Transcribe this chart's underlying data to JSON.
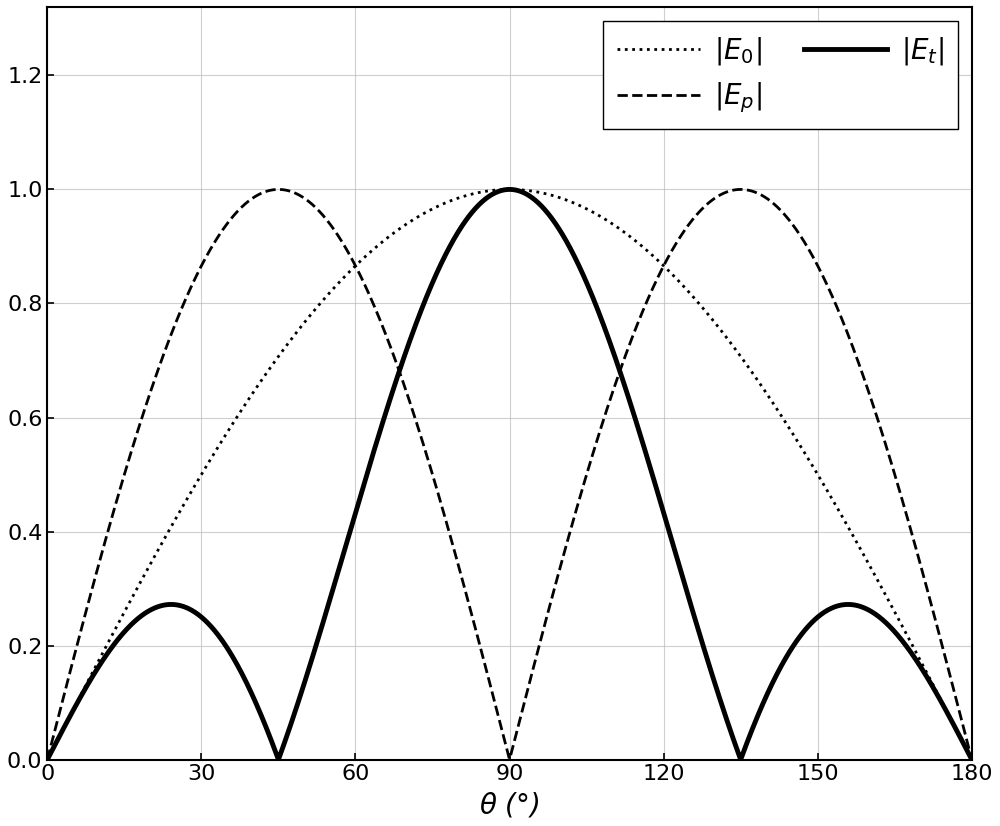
{
  "xlim": [
    0,
    180
  ],
  "ylim": [
    0,
    1.32
  ],
  "yticks": [
    0.0,
    0.2,
    0.4,
    0.6,
    0.8,
    1.0,
    1.2
  ],
  "xticks": [
    0,
    30,
    60,
    90,
    120,
    150,
    180
  ],
  "grid_color": "#bbbbbb",
  "background_color": "#ffffff",
  "line_color": "#000000",
  "figsize": [
    10.0,
    8.26
  ],
  "dpi": 100,
  "legend_loc": "upper right",
  "E0_style": {
    "linestyle": "dotted",
    "linewidth": 2.0,
    "color": "#000000"
  },
  "Ep_style": {
    "linestyle": "dashed",
    "linewidth": 2.0,
    "color": "#000000"
  },
  "Et_style": {
    "linestyle": "solid",
    "linewidth": 3.5,
    "color": "#000000"
  }
}
